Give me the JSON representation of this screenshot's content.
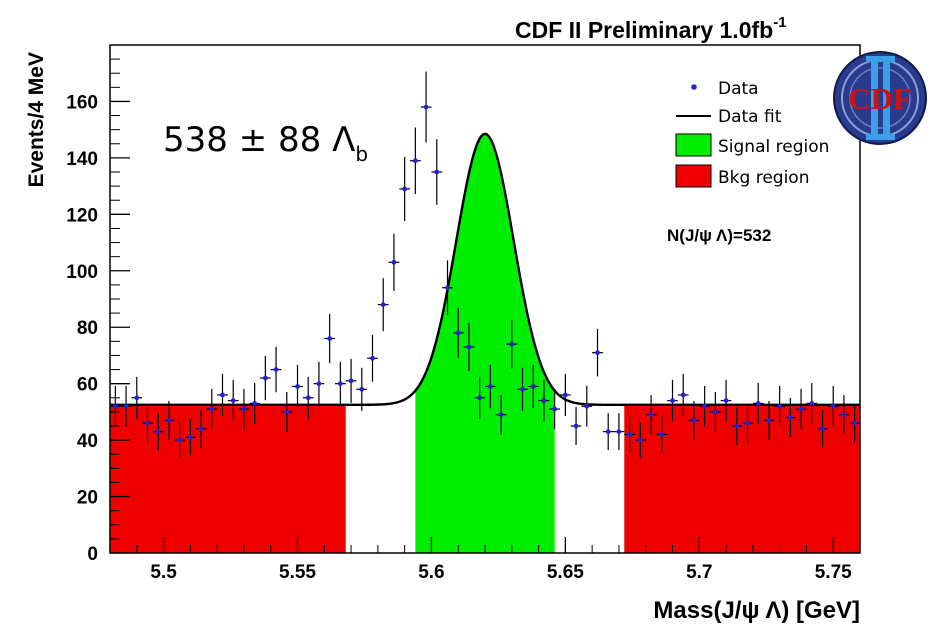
{
  "chart_data": {
    "type": "scatter",
    "title": "CDF II Preliminary 1.0fb",
    "title_superscript": "-1",
    "xlabel": "Mass(J/ψ Λ) [GeV]",
    "ylabel": "Events/4 MeV",
    "xlim": [
      5.48,
      5.76
    ],
    "ylim": [
      0,
      180
    ],
    "xticks": [
      5.5,
      5.55,
      5.6,
      5.65,
      5.7,
      5.75
    ],
    "xtick_labels": [
      "5.5",
      "5.55",
      "5.6",
      "5.65",
      "5.7",
      "5.75"
    ],
    "yticks": [
      0,
      20,
      40,
      60,
      80,
      100,
      120,
      140,
      160
    ],
    "ytick_labels": [
      "0",
      "20",
      "40",
      "60",
      "80",
      "100",
      "120",
      "140",
      "160"
    ],
    "grid": false,
    "legend_position": "top-right",
    "legend": [
      {
        "label": "Data",
        "kind": "marker",
        "color": "#2222dd"
      },
      {
        "label": "Data fit",
        "kind": "line",
        "color": "#000000"
      },
      {
        "label": "Signal region",
        "kind": "fill",
        "color": "#00ee00"
      },
      {
        "label": "Bkg region",
        "kind": "fill",
        "color": "#ee0000"
      }
    ],
    "annotations": {
      "yield_text": "538 ± 88 Λ",
      "yield_subscript": "b",
      "fit_count": "N(J/ψ Λ)=532"
    },
    "logo_text": "CDF",
    "fit": {
      "background": 52.5,
      "mean": 5.62,
      "sigma": 0.0107,
      "amplitude": 96
    },
    "regions": [
      {
        "name": "Bkg region",
        "xmin": 5.48,
        "xmax": 5.568,
        "color": "#ee0000"
      },
      {
        "name": "Signal region",
        "xmin": 5.594,
        "xmax": 5.646,
        "color": "#00ee00"
      },
      {
        "name": "Bkg region",
        "xmin": 5.672,
        "xmax": 5.76,
        "color": "#ee0000"
      }
    ],
    "series": [
      {
        "name": "Data",
        "x": [
          5.482,
          5.486,
          5.49,
          5.494,
          5.498,
          5.502,
          5.506,
          5.51,
          5.514,
          5.518,
          5.522,
          5.526,
          5.53,
          5.534,
          5.538,
          5.542,
          5.546,
          5.55,
          5.554,
          5.558,
          5.562,
          5.566,
          5.57,
          5.574,
          5.578,
          5.582,
          5.586,
          5.59,
          5.594,
          5.598,
          5.602,
          5.606,
          5.61,
          5.614,
          5.618,
          5.622,
          5.626,
          5.63,
          5.634,
          5.638,
          5.642,
          5.646,
          5.65,
          5.654,
          5.658,
          5.662,
          5.666,
          5.67,
          5.674,
          5.678,
          5.682,
          5.686,
          5.69,
          5.694,
          5.698,
          5.702,
          5.706,
          5.71,
          5.714,
          5.718,
          5.722,
          5.726,
          5.73,
          5.734,
          5.738,
          5.742,
          5.746,
          5.75,
          5.754,
          5.758
        ],
        "y": [
          52,
          52,
          55,
          46,
          43,
          47,
          40,
          41,
          44,
          51,
          56,
          54,
          51,
          53,
          62,
          65,
          50,
          59,
          55,
          60,
          76,
          60,
          61,
          58,
          69,
          88,
          103,
          129,
          139,
          158,
          135,
          94,
          78,
          73,
          55,
          59,
          49,
          74,
          58,
          59,
          54,
          51,
          56,
          45,
          52,
          71,
          43,
          43,
          42,
          40,
          49,
          42,
          54,
          56,
          47,
          52,
          50,
          54,
          45,
          46,
          53,
          47,
          52,
          48,
          51,
          53,
          44,
          52,
          49,
          46
        ]
      }
    ]
  }
}
